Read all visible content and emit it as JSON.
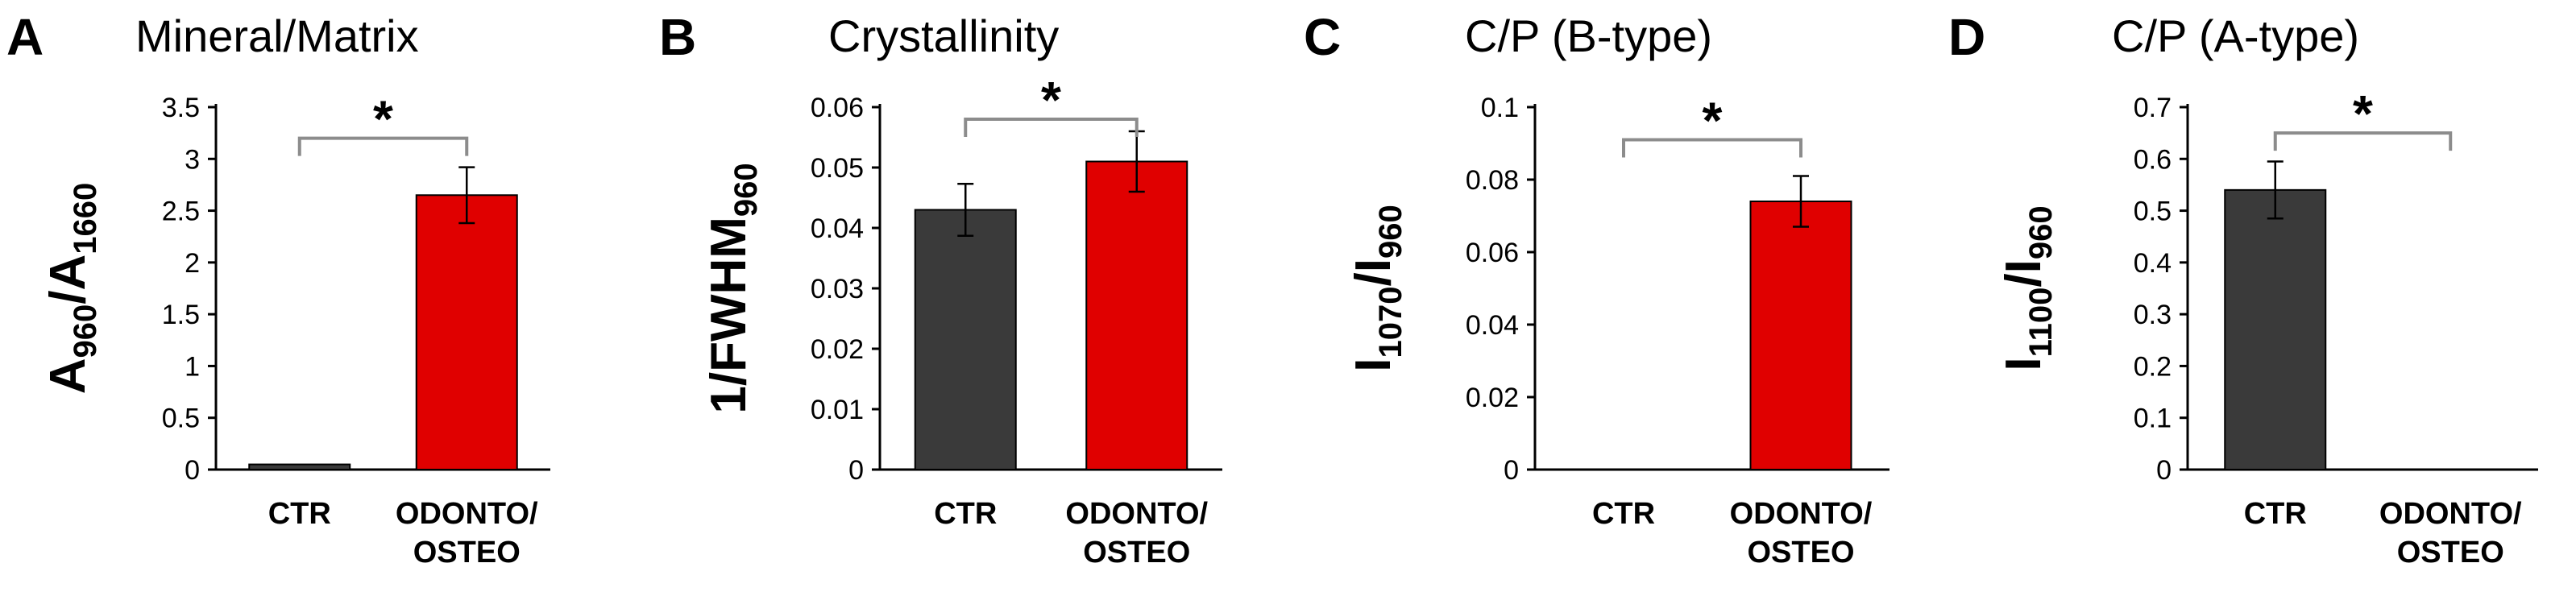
{
  "chart_data": [
    {
      "panel": "A",
      "type": "bar",
      "title": "Mineral/Matrix",
      "ylabel": {
        "parts": [
          {
            "t": "A",
            "sub": false
          },
          {
            "t": "960",
            "sub": true
          },
          {
            "t": "/A",
            "sub": false
          },
          {
            "t": "1660",
            "sub": true
          }
        ]
      },
      "categories": [
        [
          "CTR"
        ],
        [
          "ODONTO/",
          "OSTEO"
        ]
      ],
      "values": [
        0.05,
        2.65
      ],
      "errors": [
        0,
        0.27
      ],
      "colors": [
        "#3a3a3a",
        "#e00000"
      ],
      "ylim": [
        0,
        3.5
      ],
      "ticks": [
        "0",
        "0.5",
        "1",
        "1.5",
        "2",
        "2.5",
        "3",
        "3.5"
      ],
      "significance": {
        "label": "*",
        "y": 3.2
      }
    },
    {
      "panel": "B",
      "type": "bar",
      "title": "Crystallinity",
      "ylabel": {
        "parts": [
          {
            "t": "1/FWHM",
            "sub": false
          },
          {
            "t": "960",
            "sub": true
          }
        ]
      },
      "categories": [
        [
          "CTR"
        ],
        [
          "ODONTO/",
          "OSTEO"
        ]
      ],
      "values": [
        0.043,
        0.051
      ],
      "errors": [
        0.0043,
        0.005
      ],
      "colors": [
        "#3a3a3a",
        "#e00000"
      ],
      "ylim": [
        0,
        0.06
      ],
      "ticks": [
        "0",
        "0.01",
        "0.02",
        "0.03",
        "0.04",
        "0.05",
        "0.06"
      ],
      "significance": {
        "label": "*",
        "y": 0.058
      }
    },
    {
      "panel": "C",
      "type": "bar",
      "title": "C/P (B-type)",
      "ylabel": {
        "parts": [
          {
            "t": "I",
            "sub": false
          },
          {
            "t": "1070",
            "sub": true
          },
          {
            "t": "/I",
            "sub": false
          },
          {
            "t": "960",
            "sub": true
          }
        ]
      },
      "categories": [
        [
          "CTR"
        ],
        [
          "ODONTO/",
          "OSTEO"
        ]
      ],
      "values": [
        0,
        0.074
      ],
      "errors": [
        0,
        0.007
      ],
      "colors": [
        "#3a3a3a",
        "#e00000"
      ],
      "ylim": [
        0,
        0.1
      ],
      "ticks": [
        "0",
        "0.02",
        "0.04",
        "0.06",
        "0.08",
        "0.1"
      ],
      "significance": {
        "label": "*",
        "y": 0.091
      }
    },
    {
      "panel": "D",
      "type": "bar",
      "title": "C/P (A-type)",
      "ylabel": {
        "parts": [
          {
            "t": "I",
            "sub": false
          },
          {
            "t": "1100",
            "sub": true
          },
          {
            "t": "/I",
            "sub": false
          },
          {
            "t": "960",
            "sub": true
          }
        ]
      },
      "categories": [
        [
          "CTR"
        ],
        [
          "ODONTO/",
          "OSTEO"
        ]
      ],
      "values": [
        0.54,
        0
      ],
      "errors": [
        0.055,
        0
      ],
      "colors": [
        "#3a3a3a",
        "#e00000"
      ],
      "ylim": [
        0,
        0.7
      ],
      "ticks": [
        "0",
        "0.1",
        "0.2",
        "0.3",
        "0.4",
        "0.5",
        "0.6",
        "0.7"
      ],
      "significance": {
        "label": "*",
        "y": 0.65
      }
    }
  ]
}
